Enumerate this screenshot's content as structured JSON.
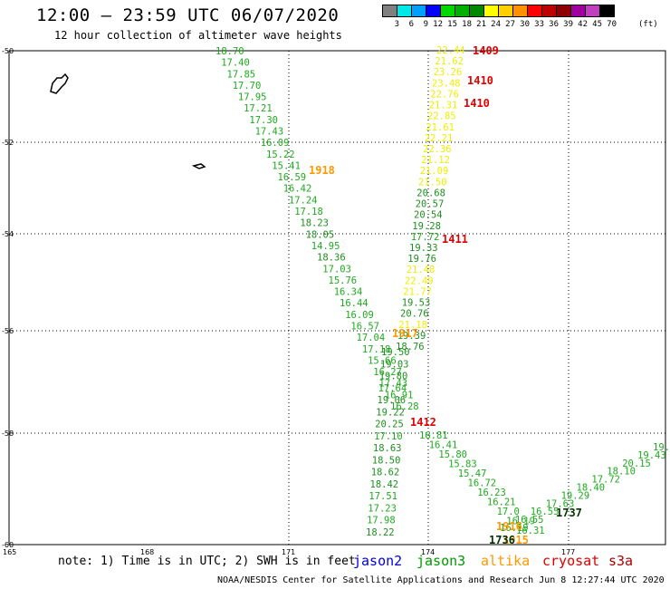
{
  "header": {
    "title": "12:00 – 23:59 UTC 06/07/2020",
    "subtitle": "12 hour collection of altimeter wave heights"
  },
  "colorbar": {
    "unit": "(ft)",
    "bins": [
      {
        "label": "3",
        "color": "#808080"
      },
      {
        "label": "6",
        "color": "#00e8e8"
      },
      {
        "label": "9",
        "color": "#00a0ff"
      },
      {
        "label": "12",
        "color": "#0000ff"
      },
      {
        "label": "15",
        "color": "#00d800"
      },
      {
        "label": "18",
        "color": "#00b000"
      },
      {
        "label": "21",
        "color": "#008800"
      },
      {
        "label": "24",
        "color": "#ffff00"
      },
      {
        "label": "27",
        "color": "#ffd000"
      },
      {
        "label": "30",
        "color": "#ff9000"
      },
      {
        "label": "33",
        "color": "#ff0000"
      },
      {
        "label": "36",
        "color": "#c00000"
      },
      {
        "label": "39",
        "color": "#900000"
      },
      {
        "label": "42",
        "color": "#a000a0"
      },
      {
        "label": "45",
        "color": "#c040c0"
      },
      {
        "label": "70",
        "color": "#000000"
      }
    ]
  },
  "axes": {
    "x_ticks": [
      "165",
      "168",
      "171",
      "174",
      "177"
    ],
    "y_ticks": [
      "-50",
      "-52",
      "-54",
      "-56",
      "-58",
      "-60"
    ]
  },
  "colors": {
    "c18": "#1faa1f",
    "c21": "#1e8f1e",
    "c24": "#eeee00",
    "c30": "#ff9900",
    "c33": "#e00000",
    "c_dark": "#003300"
  },
  "tracks": [
    {
      "name": "track-a",
      "points": [
        {
          "t": "18.70",
          "c": "c18"
        },
        {
          "t": "17.40",
          "c": "c18"
        },
        {
          "t": "17.85",
          "c": "c18"
        },
        {
          "t": "17.70",
          "c": "c18"
        },
        {
          "t": "17.95",
          "c": "c18"
        },
        {
          "t": "17.21",
          "c": "c18"
        },
        {
          "t": "17.30",
          "c": "c18"
        },
        {
          "t": "17.43",
          "c": "c18"
        },
        {
          "t": "16.09",
          "c": "c18"
        },
        {
          "t": "15.22",
          "c": "c18"
        },
        {
          "t": "15.41",
          "c": "c18"
        },
        {
          "t": "16.59",
          "c": "c18"
        },
        {
          "t": "16.42",
          "c": "c18"
        },
        {
          "t": "17.24",
          "c": "c18"
        },
        {
          "t": "17.18",
          "c": "c18"
        },
        {
          "t": "18.23",
          "c": "c21"
        },
        {
          "t": "18.05",
          "c": "c21"
        },
        {
          "t": "14.95",
          "c": "c18"
        },
        {
          "t": "18.36",
          "c": "c21"
        },
        {
          "t": "17.03",
          "c": "c18"
        },
        {
          "t": "15.76",
          "c": "c18"
        },
        {
          "t": "16.34",
          "c": "c18"
        },
        {
          "t": "16.44",
          "c": "c18"
        },
        {
          "t": "16.09",
          "c": "c18"
        },
        {
          "t": "16.57",
          "c": "c18"
        },
        {
          "t": "17.04",
          "c": "c18"
        },
        {
          "t": "17.18",
          "c": "c18"
        },
        {
          "t": "15.66",
          "c": "c18"
        },
        {
          "t": "16.27",
          "c": "c18"
        },
        {
          "t": "17.43",
          "c": "c18"
        },
        {
          "t": "16.91",
          "c": "c18"
        },
        {
          "t": "16.28",
          "c": "c18"
        }
      ]
    },
    {
      "name": "track-b",
      "points": [
        {
          "t": "19.50",
          "c": "c21"
        },
        {
          "t": "19.03",
          "c": "c21"
        },
        {
          "t": "19.80",
          "c": "c21"
        },
        {
          "t": "17.64",
          "c": "c18"
        },
        {
          "t": "19.06",
          "c": "c21"
        },
        {
          "t": "19.22",
          "c": "c21"
        },
        {
          "t": "20.25",
          "c": "c21"
        },
        {
          "t": "17.10",
          "c": "c18"
        },
        {
          "t": "18.63",
          "c": "c21"
        },
        {
          "t": "18.50",
          "c": "c21"
        },
        {
          "t": "18.62",
          "c": "c21"
        },
        {
          "t": "18.42",
          "c": "c21"
        },
        {
          "t": "17.51",
          "c": "c18"
        },
        {
          "t": "17.23",
          "c": "c18"
        },
        {
          "t": "17.98",
          "c": "c18"
        },
        {
          "t": "18.22",
          "c": "c21"
        }
      ]
    },
    {
      "name": "track-c",
      "points": [
        {
          "t": "22.44",
          "c": "c24"
        },
        {
          "t": "21.62",
          "c": "c24"
        },
        {
          "t": "23.26",
          "c": "c24"
        },
        {
          "t": "23.48",
          "c": "c24"
        },
        {
          "t": "22.76",
          "c": "c24"
        },
        {
          "t": "21.31",
          "c": "c24"
        },
        {
          "t": "22.85",
          "c": "c24"
        },
        {
          "t": "21.61",
          "c": "c24"
        },
        {
          "t": "22.21",
          "c": "c24"
        },
        {
          "t": "22.36",
          "c": "c24"
        },
        {
          "t": "21.12",
          "c": "c24"
        },
        {
          "t": "21.09",
          "c": "c24"
        },
        {
          "t": "21.50",
          "c": "c24"
        },
        {
          "t": "20.68",
          "c": "c21"
        },
        {
          "t": "20.57",
          "c": "c21"
        },
        {
          "t": "20.54",
          "c": "c21"
        },
        {
          "t": "19.28",
          "c": "c21"
        },
        {
          "t": "17.72",
          "c": "c18"
        },
        {
          "t": "19.33",
          "c": "c21"
        },
        {
          "t": "19.76",
          "c": "c21"
        },
        {
          "t": "21.48",
          "c": "c24"
        },
        {
          "t": "22.49",
          "c": "c24"
        },
        {
          "t": "21.77",
          "c": "c24"
        },
        {
          "t": "19.53",
          "c": "c21"
        },
        {
          "t": "20.76",
          "c": "c21"
        },
        {
          "t": "21.18",
          "c": "c24"
        },
        {
          "t": "19.39",
          "c": "c21"
        },
        {
          "t": "18.76",
          "c": "c21"
        }
      ]
    },
    {
      "name": "track-d",
      "points": [
        {
          "t": "16.81",
          "c": "c18"
        },
        {
          "t": "16.41",
          "c": "c18"
        },
        {
          "t": "15.80",
          "c": "c18"
        },
        {
          "t": "15.83",
          "c": "c18"
        },
        {
          "t": "15.47",
          "c": "c18"
        },
        {
          "t": "16.72",
          "c": "c18"
        },
        {
          "t": "16.23",
          "c": "c18"
        },
        {
          "t": "16.21",
          "c": "c18"
        },
        {
          "t": "17.0",
          "c": "c18"
        },
        {
          "t": "16.19",
          "c": "c18"
        },
        {
          "t": "16.31",
          "c": "c18"
        }
      ]
    },
    {
      "name": "track-e",
      "points": [
        {
          "t": "19.6",
          "c": "c18"
        },
        {
          "t": "19.43",
          "c": "c18"
        },
        {
          "t": "20.15",
          "c": "c18"
        },
        {
          "t": "18.10",
          "c": "c18"
        },
        {
          "t": "17.72",
          "c": "c18"
        },
        {
          "t": "18.40",
          "c": "c18"
        },
        {
          "t": "19.29",
          "c": "c18"
        },
        {
          "t": "17.63",
          "c": "c18"
        },
        {
          "t": "16.55",
          "c": "c18"
        },
        {
          "t": "16.55",
          "c": "c18"
        },
        {
          "t": "16.19",
          "c": "c18"
        }
      ]
    }
  ],
  "time_labels": [
    {
      "t": "1409",
      "c": "c33"
    },
    {
      "t": "1410",
      "c": "c33"
    },
    {
      "t": "1410",
      "c": "c33"
    },
    {
      "t": "1918",
      "c": "c30"
    },
    {
      "t": "1411",
      "c": "c33"
    },
    {
      "t": "1917",
      "c": "c30"
    },
    {
      "t": "1412",
      "c": "c33"
    },
    {
      "t": "1737",
      "c": "c_dark"
    },
    {
      "t": "1916",
      "c": "c30"
    },
    {
      "t": "1915",
      "c": "c30"
    },
    {
      "t": "1736",
      "c": "c_dark"
    }
  ],
  "footer": {
    "note": "note: 1) Time is in UTC; 2) SWH is in feet",
    "missions": [
      {
        "label": "jason2",
        "color": "#0000dd"
      },
      {
        "label": "jason3",
        "color": "#009900"
      },
      {
        "label": "altika",
        "color": "#ff9900"
      },
      {
        "label": "cryosat",
        "color": "#dd0000"
      },
      {
        "label": "s3a",
        "color": "#aa0000"
      }
    ],
    "credit": "NOAA/NESDIS Center for Satellite Applications and Research   Jun  8 12:27:44 UTC 2020"
  }
}
